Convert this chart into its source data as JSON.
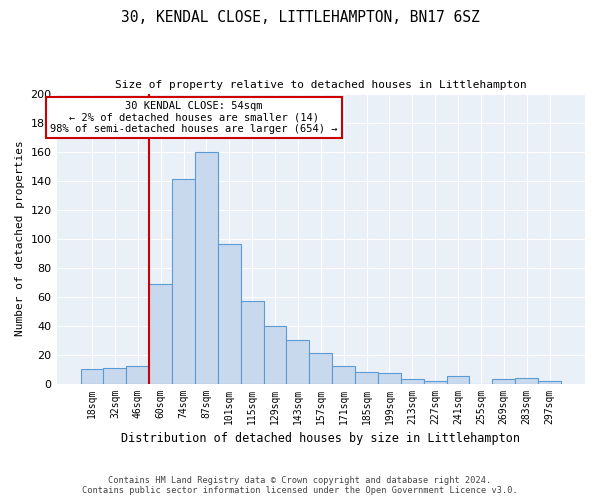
{
  "title": "30, KENDAL CLOSE, LITTLEHAMPTON, BN17 6SZ",
  "subtitle": "Size of property relative to detached houses in Littlehampton",
  "xlabel": "Distribution of detached houses by size in Littlehampton",
  "ylabel": "Number of detached properties",
  "categories": [
    "18sqm",
    "32sqm",
    "46sqm",
    "60sqm",
    "74sqm",
    "87sqm",
    "101sqm",
    "115sqm",
    "129sqm",
    "143sqm",
    "157sqm",
    "171sqm",
    "185sqm",
    "199sqm",
    "213sqm",
    "227sqm",
    "241sqm",
    "255sqm",
    "269sqm",
    "283sqm",
    "297sqm"
  ],
  "values": [
    10,
    11,
    12,
    69,
    141,
    160,
    96,
    57,
    40,
    30,
    21,
    12,
    8,
    7,
    3,
    2,
    5,
    0,
    3,
    4,
    2
  ],
  "bar_color": "#c8d9ee",
  "bar_edge_color": "#5b9bd5",
  "ylim": [
    0,
    200
  ],
  "yticks": [
    0,
    20,
    40,
    60,
    80,
    100,
    120,
    140,
    160,
    180,
    200
  ],
  "annotation_text": "30 KENDAL CLOSE: 54sqm\n← 2% of detached houses are smaller (14)\n98% of semi-detached houses are larger (654) →",
  "vline_x": 2.5,
  "annotation_box_color": "#ffffff",
  "annotation_box_edge_color": "#cc0000",
  "bg_color": "#eaf0f8",
  "footer_line1": "Contains HM Land Registry data © Crown copyright and database right 2024.",
  "footer_line2": "Contains public sector information licensed under the Open Government Licence v3.0."
}
